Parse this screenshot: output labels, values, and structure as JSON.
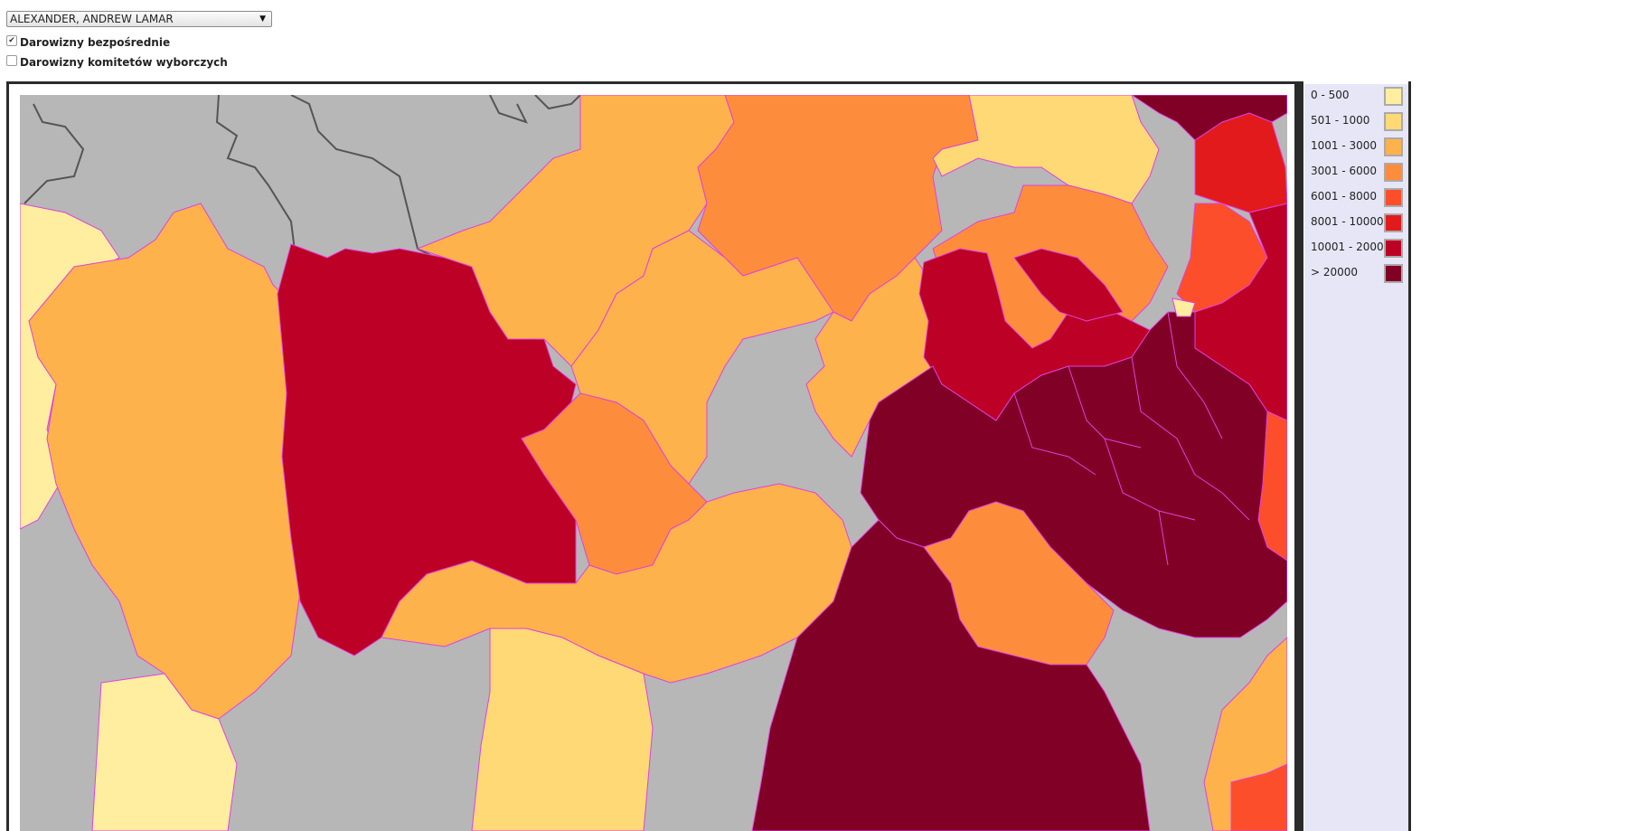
{
  "controls": {
    "candidate_select": {
      "value": "ALEXANDER, ANDREW LAMAR"
    },
    "checkboxes": [
      {
        "label": "Darowizny bezpośrednie",
        "checked": true
      },
      {
        "label": "Darowizny komitetów wyborczych",
        "checked": false
      }
    ]
  },
  "legend": {
    "items": [
      {
        "label": " 0 - 500",
        "color": "#ffeda0"
      },
      {
        "label": "501 - 1000",
        "color": "#fed976"
      },
      {
        "label": "1001 - 3000",
        "color": "#feb24c"
      },
      {
        "label": "3001 - 6000",
        "color": "#fd8d3c"
      },
      {
        "label": "6001 - 8000",
        "color": "#fc4e2a"
      },
      {
        "label": "8001 - 10000",
        "color": "#e31a1c"
      },
      {
        "label": "10001 - 20000",
        "color": "#bd0026"
      },
      {
        "label": "> 20000",
        "color": "#800026"
      }
    ]
  },
  "map": {
    "no_data_color": "#b7b7b7",
    "boundary_color": "#e040e0"
  }
}
